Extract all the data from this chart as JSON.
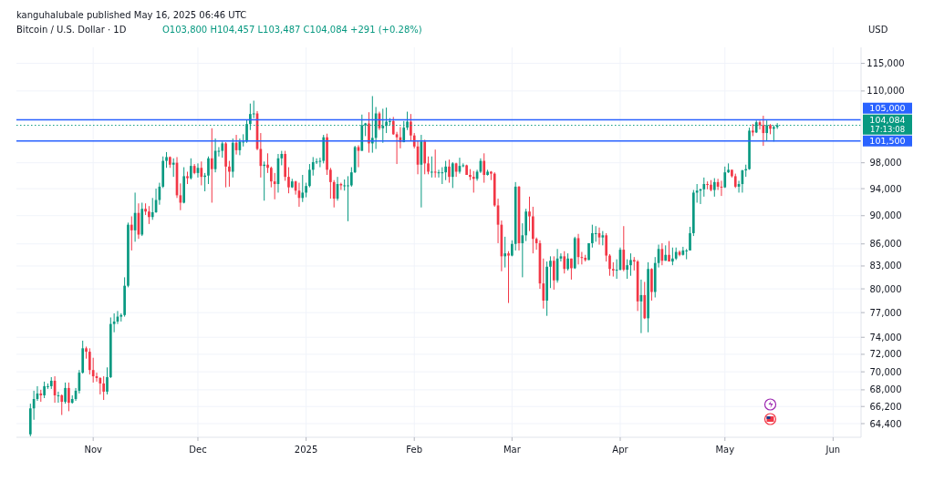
{
  "chart_data": {
    "type": "candlestick",
    "title": "Bitcoin / U.S. Dollar · 1D",
    "subtitle": "O103,800 H104,457 L103,487 C104,084 +291 (+0.28%)",
    "ylabel": "USD",
    "annotations": [
      "kanguhalubale published May 16, 2025 06:46 UTC",
      "17:13:08"
    ],
    "log": true,
    "grid": true,
    "xlim": [
      "2024-10-10",
      "2025-06-09"
    ],
    "xticks": [
      {
        "value": "2024-11-01",
        "label": "Nov"
      },
      {
        "value": "2024-12-01",
        "label": "Dec"
      },
      {
        "value": "2025-01-01",
        "label": "2025"
      },
      {
        "value": "2025-02-01",
        "label": "Feb"
      },
      {
        "value": "2025-03-01",
        "label": "Mar"
      },
      {
        "value": "2025-04-01",
        "label": "Apr"
      },
      {
        "value": "2025-05-01",
        "label": "May"
      },
      {
        "value": "2025-06-01",
        "label": "Jun"
      }
    ],
    "ylim": [
      63000,
      118000
    ],
    "yticks": [
      {
        "value": 64400,
        "label": "64,400"
      },
      {
        "value": 66200,
        "label": "66,200"
      },
      {
        "value": 68000,
        "label": "68,000"
      },
      {
        "value": 70000,
        "label": "70,000"
      },
      {
        "value": 72000,
        "label": "72,000"
      },
      {
        "value": 74000,
        "label": "74,000"
      },
      {
        "value": 77000,
        "label": "77,000"
      },
      {
        "value": 80000,
        "label": "80,000"
      },
      {
        "value": 83000,
        "label": "83,000"
      },
      {
        "value": 86000,
        "label": "86,000"
      },
      {
        "value": 90000,
        "label": "90,000"
      },
      {
        "value": 94000,
        "label": "94,000"
      },
      {
        "value": 98000,
        "label": "98,000"
      },
      {
        "value": 110000,
        "label": "110,000"
      },
      {
        "value": 115000,
        "label": "115,000"
      }
    ],
    "ref_lines": [
      {
        "axis": "y",
        "value": 105000,
        "label": "105,000",
        "color": "#2962ff",
        "line_style": "solid"
      },
      {
        "axis": "y",
        "value": 101500,
        "label": "101,500",
        "color": "#2962ff",
        "line_style": "solid"
      },
      {
        "axis": "y",
        "value": 104084,
        "label": "104,084",
        "color": "#089981",
        "line_style": "dotted"
      }
    ],
    "x": [
      "2024-10-14",
      "2024-10-15",
      "2024-10-16",
      "2024-10-17",
      "2024-10-18",
      "2024-10-19",
      "2024-10-20",
      "2024-10-21",
      "2024-10-22",
      "2024-10-23",
      "2024-10-24",
      "2024-10-25",
      "2024-10-26",
      "2024-10-27",
      "2024-10-28",
      "2024-10-29",
      "2024-10-30",
      "2024-10-31",
      "2024-11-01",
      "2024-11-02",
      "2024-11-03",
      "2024-11-04",
      "2024-11-05",
      "2024-11-06",
      "2024-11-07",
      "2024-11-08",
      "2024-11-09",
      "2024-11-10",
      "2024-11-11",
      "2024-11-12",
      "2024-11-13",
      "2024-11-14",
      "2024-11-15",
      "2024-11-16",
      "2024-11-17",
      "2024-11-18",
      "2024-11-19",
      "2024-11-20",
      "2024-11-21",
      "2024-11-22",
      "2024-11-23",
      "2024-11-24",
      "2024-11-25",
      "2024-11-26",
      "2024-11-27",
      "2024-11-28",
      "2024-11-29",
      "2024-11-30",
      "2024-12-01",
      "2024-12-02",
      "2024-12-03",
      "2024-12-04",
      "2024-12-05",
      "2024-12-06",
      "2024-12-07",
      "2024-12-08",
      "2024-12-09",
      "2024-12-10",
      "2024-12-11",
      "2024-12-12",
      "2024-12-13",
      "2024-12-14",
      "2024-12-15",
      "2024-12-16",
      "2024-12-17",
      "2024-12-18",
      "2024-12-19",
      "2024-12-20",
      "2024-12-21",
      "2024-12-22",
      "2024-12-23",
      "2024-12-24",
      "2024-12-25",
      "2024-12-26",
      "2024-12-27",
      "2024-12-28",
      "2024-12-29",
      "2024-12-30",
      "2024-12-31",
      "2025-01-01",
      "2025-01-02",
      "2025-01-03",
      "2025-01-04",
      "2025-01-05",
      "2025-01-06",
      "2025-01-07",
      "2025-01-08",
      "2025-01-09",
      "2025-01-10",
      "2025-01-11",
      "2025-01-12",
      "2025-01-13",
      "2025-01-14",
      "2025-01-15",
      "2025-01-16",
      "2025-01-17",
      "2025-01-18",
      "2025-01-19",
      "2025-01-20",
      "2025-01-21",
      "2025-01-22",
      "2025-01-23",
      "2025-01-24",
      "2025-01-25",
      "2025-01-26",
      "2025-01-27",
      "2025-01-28",
      "2025-01-29",
      "2025-01-30",
      "2025-01-31",
      "2025-02-01",
      "2025-02-02",
      "2025-02-03",
      "2025-02-04",
      "2025-02-05",
      "2025-02-06",
      "2025-02-07",
      "2025-02-08",
      "2025-02-09",
      "2025-02-10",
      "2025-02-11",
      "2025-02-12",
      "2025-02-13",
      "2025-02-14",
      "2025-02-15",
      "2025-02-16",
      "2025-02-17",
      "2025-02-18",
      "2025-02-19",
      "2025-02-20",
      "2025-02-21",
      "2025-02-22",
      "2025-02-23",
      "2025-02-24",
      "2025-02-25",
      "2025-02-26",
      "2025-02-27",
      "2025-02-28",
      "2025-03-01",
      "2025-03-02",
      "2025-03-03",
      "2025-03-04",
      "2025-03-05",
      "2025-03-06",
      "2025-03-07",
      "2025-03-08",
      "2025-03-09",
      "2025-03-10",
      "2025-03-11",
      "2025-03-12",
      "2025-03-13",
      "2025-03-14",
      "2025-03-15",
      "2025-03-16",
      "2025-03-17",
      "2025-03-18",
      "2025-03-19",
      "2025-03-20",
      "2025-03-21",
      "2025-03-22",
      "2025-03-23",
      "2025-03-24",
      "2025-03-25",
      "2025-03-26",
      "2025-03-27",
      "2025-03-28",
      "2025-03-29",
      "2025-03-30",
      "2025-03-31",
      "2025-04-01",
      "2025-04-02",
      "2025-04-03",
      "2025-04-04",
      "2025-04-05",
      "2025-04-06",
      "2025-04-07",
      "2025-04-08",
      "2025-04-09",
      "2025-04-10",
      "2025-04-11",
      "2025-04-12",
      "2025-04-13",
      "2025-04-14",
      "2025-04-15",
      "2025-04-16",
      "2025-04-17",
      "2025-04-18",
      "2025-04-19",
      "2025-04-20",
      "2025-04-21",
      "2025-04-22",
      "2025-04-23",
      "2025-04-24",
      "2025-04-25",
      "2025-04-26",
      "2025-04-27",
      "2025-04-28",
      "2025-04-29",
      "2025-04-30",
      "2025-05-01",
      "2025-05-02",
      "2025-05-03",
      "2025-05-04",
      "2025-05-05",
      "2025-05-06",
      "2025-05-07",
      "2025-05-08",
      "2025-05-09",
      "2025-05-10",
      "2025-05-11",
      "2025-05-12",
      "2025-05-13",
      "2025-05-14",
      "2025-05-15",
      "2025-05-16"
    ],
    "ohlc": [
      [
        63300,
        66500,
        63100,
        66000
      ],
      [
        66000,
        67900,
        64800,
        67000
      ],
      [
        67000,
        68400,
        66800,
        67600
      ],
      [
        67600,
        68000,
        66700,
        67400
      ],
      [
        67400,
        68900,
        67100,
        68400
      ],
      [
        68400,
        68700,
        68100,
        68400
      ],
      [
        68400,
        69400,
        68100,
        69000
      ],
      [
        69000,
        69500,
        66600,
        67400
      ],
      [
        67400,
        67800,
        66600,
        67400
      ],
      [
        67400,
        67500,
        65300,
        66700
      ],
      [
        66700,
        68800,
        66500,
        68200
      ],
      [
        68200,
        68800,
        65700,
        66600
      ],
      [
        66600,
        67400,
        66500,
        67000
      ],
      [
        67000,
        68200,
        66800,
        67900
      ],
      [
        67900,
        70200,
        67600,
        69900
      ],
      [
        69900,
        73600,
        69800,
        72700
      ],
      [
        72700,
        72900,
        71500,
        72300
      ],
      [
        72300,
        72700,
        69700,
        70200
      ],
      [
        70200,
        71600,
        68800,
        69500
      ],
      [
        69500,
        69900,
        68900,
        69300
      ],
      [
        69300,
        69400,
        67500,
        68700
      ],
      [
        68700,
        69500,
        66900,
        67800
      ],
      [
        67800,
        70500,
        67500,
        69400
      ],
      [
        69400,
        76400,
        69300,
        75600
      ],
      [
        75600,
        76900,
        74600,
        75900
      ],
      [
        75900,
        77200,
        75600,
        76500
      ],
      [
        76500,
        76900,
        75900,
        76700
      ],
      [
        76700,
        81500,
        76500,
        80400
      ],
      [
        80400,
        89000,
        80200,
        88700
      ],
      [
        88700,
        89900,
        85100,
        87900
      ],
      [
        87900,
        93400,
        86300,
        90400
      ],
      [
        90400,
        91800,
        86700,
        87300
      ],
      [
        87300,
        91900,
        87100,
        91000
      ],
      [
        91000,
        91800,
        90100,
        90600
      ],
      [
        90600,
        91400,
        88800,
        89800
      ],
      [
        89800,
        92600,
        89400,
        90500
      ],
      [
        90500,
        94000,
        90400,
        92300
      ],
      [
        92300,
        94900,
        91600,
        94300
      ],
      [
        94300,
        99000,
        94100,
        98300
      ],
      [
        98300,
        99700,
        97200,
        98900
      ],
      [
        98900,
        99000,
        97200,
        97700
      ],
      [
        97700,
        98700,
        95800,
        98000
      ],
      [
        98000,
        98900,
        92600,
        93000
      ],
      [
        93000,
        94800,
        90800,
        91900
      ],
      [
        91900,
        97300,
        91800,
        95900
      ],
      [
        95900,
        96600,
        94700,
        95600
      ],
      [
        95600,
        98700,
        95400,
        97500
      ],
      [
        97500,
        97800,
        96200,
        96400
      ],
      [
        96400,
        97900,
        95700,
        97200
      ],
      [
        97200,
        98200,
        94500,
        95800
      ],
      [
        95800,
        96400,
        93600,
        96000
      ],
      [
        96000,
        99000,
        94700,
        98700
      ],
      [
        98700,
        103600,
        91900,
        97000
      ],
      [
        97000,
        101900,
        96500,
        99900
      ],
      [
        99900,
        100500,
        99000,
        99900
      ],
      [
        99900,
        101400,
        98800,
        101100
      ],
      [
        101100,
        101300,
        94200,
        97400
      ],
      [
        97400,
        98300,
        94300,
        96600
      ],
      [
        96600,
        101900,
        95700,
        101200
      ],
      [
        101200,
        102500,
        99300,
        100000
      ],
      [
        100000,
        101900,
        99200,
        101400
      ],
      [
        101400,
        102600,
        100600,
        101400
      ],
      [
        101400,
        105000,
        101200,
        104300
      ],
      [
        104300,
        107800,
        103300,
        106000
      ],
      [
        106000,
        108300,
        105300,
        106100
      ],
      [
        106100,
        106500,
        100000,
        100200
      ],
      [
        100200,
        102800,
        95700,
        97500
      ],
      [
        97500,
        98200,
        92200,
        97700
      ],
      [
        97700,
        99500,
        96400,
        97200
      ],
      [
        97200,
        97400,
        94200,
        95100
      ],
      [
        95100,
        96400,
        92400,
        94700
      ],
      [
        94700,
        99400,
        93400,
        98700
      ],
      [
        98700,
        99900,
        97600,
        99400
      ],
      [
        99400,
        99900,
        95200,
        95800
      ],
      [
        95800,
        97300,
        93300,
        94200
      ],
      [
        94200,
        95500,
        94100,
        95100
      ],
      [
        95100,
        95200,
        93100,
        93700
      ],
      [
        93700,
        94900,
        91300,
        92600
      ],
      [
        92600,
        96100,
        92000,
        93400
      ],
      [
        93400,
        94900,
        92700,
        94400
      ],
      [
        94400,
        97800,
        94200,
        96900
      ],
      [
        96900,
        98900,
        96000,
        98100
      ],
      [
        98100,
        98700,
        97800,
        98200
      ],
      [
        98200,
        98800,
        97300,
        98300
      ],
      [
        98300,
        102500,
        97900,
        102100
      ],
      [
        102100,
        102700,
        96100,
        96900
      ],
      [
        96900,
        97200,
        92500,
        95000
      ],
      [
        95000,
        95300,
        91200,
        92500
      ],
      [
        92500,
        95800,
        92200,
        94700
      ],
      [
        94700,
        94900,
        93800,
        94500
      ],
      [
        94500,
        95400,
        93700,
        94500
      ],
      [
        94500,
        95900,
        89200,
        94500
      ],
      [
        94500,
        97300,
        94300,
        96500
      ],
      [
        96500,
        100700,
        96400,
        100500
      ],
      [
        100500,
        100800,
        97300,
        99900
      ],
      [
        99900,
        105900,
        99900,
        104100
      ],
      [
        104100,
        104500,
        102300,
        104400
      ],
      [
        104400,
        106300,
        99600,
        101100
      ],
      [
        101100,
        109100,
        99600,
        102000
      ],
      [
        102000,
        107200,
        100200,
        106100
      ],
      [
        106100,
        106400,
        103300,
        103600
      ],
      [
        103600,
        106900,
        101200,
        104000
      ],
      [
        104000,
        107100,
        102800,
        104700
      ],
      [
        104700,
        105300,
        104100,
        104800
      ],
      [
        104800,
        105500,
        102500,
        102600
      ],
      [
        102600,
        103000,
        97800,
        102100
      ],
      [
        102100,
        103800,
        100300,
        101300
      ],
      [
        101300,
        104800,
        101300,
        103700
      ],
      [
        103700,
        106400,
        103300,
        104700
      ],
      [
        104700,
        106000,
        101500,
        102400
      ],
      [
        102400,
        102800,
        100300,
        100600
      ],
      [
        100600,
        101500,
        96200,
        97700
      ],
      [
        97700,
        102500,
        91200,
        101400
      ],
      [
        101400,
        101700,
        96200,
        97900
      ],
      [
        97900,
        99000,
        96200,
        96600
      ],
      [
        96600,
        99000,
        95700,
        96600
      ],
      [
        96600,
        100100,
        95700,
        96500
      ],
      [
        96500,
        96900,
        95700,
        96500
      ],
      [
        96500,
        97300,
        94700,
        96500
      ],
      [
        96500,
        98300,
        95300,
        97400
      ],
      [
        97400,
        98500,
        94900,
        95800
      ],
      [
        95800,
        98100,
        94100,
        97900
      ],
      [
        97900,
        98000,
        95800,
        96600
      ],
      [
        96600,
        98800,
        96300,
        97500
      ],
      [
        97500,
        97900,
        97300,
        97600
      ],
      [
        97600,
        97700,
        96100,
        96100
      ],
      [
        96100,
        97000,
        95300,
        95800
      ],
      [
        95800,
        96700,
        93400,
        95500
      ],
      [
        95500,
        96900,
        95200,
        96600
      ],
      [
        96600,
        98700,
        96400,
        98300
      ],
      [
        98300,
        99500,
        94900,
        96100
      ],
      [
        96100,
        96900,
        96000,
        96600
      ],
      [
        96600,
        96700,
        95300,
        96300
      ],
      [
        96300,
        96500,
        91300,
        91500
      ],
      [
        91500,
        92500,
        86100,
        88700
      ],
      [
        88700,
        89300,
        82300,
        84300
      ],
      [
        84300,
        87000,
        82800,
        84700
      ],
      [
        84700,
        85000,
        78200,
        84400
      ],
      [
        84400,
        86500,
        84300,
        86000
      ],
      [
        86000,
        95000,
        85100,
        94300
      ],
      [
        94300,
        94400,
        85100,
        86100
      ],
      [
        86100,
        88900,
        81500,
        87200
      ],
      [
        87200,
        91000,
        86400,
        90600
      ],
      [
        90600,
        92800,
        87800,
        89900
      ],
      [
        89900,
        91300,
        84700,
        86700
      ],
      [
        86700,
        86900,
        85200,
        86100
      ],
      [
        86100,
        86500,
        80000,
        80700
      ],
      [
        80700,
        84000,
        77500,
        78500
      ],
      [
        78500,
        83600,
        76600,
        82900
      ],
      [
        82900,
        84300,
        80100,
        83700
      ],
      [
        83700,
        84300,
        79900,
        81100
      ],
      [
        81100,
        85300,
        80800,
        84000
      ],
      [
        84000,
        84700,
        83600,
        84300
      ],
      [
        84300,
        85000,
        82000,
        82600
      ],
      [
        82600,
        84700,
        82400,
        84000
      ],
      [
        84000,
        84000,
        81200,
        82700
      ],
      [
        82700,
        87000,
        82600,
        86800
      ],
      [
        86800,
        87400,
        83200,
        84200
      ],
      [
        84200,
        84900,
        83200,
        84100
      ],
      [
        84100,
        84500,
        83600,
        83800
      ],
      [
        83800,
        86100,
        83800,
        86100
      ],
      [
        86100,
        88700,
        85500,
        87500
      ],
      [
        87500,
        88500,
        86300,
        87500
      ],
      [
        87500,
        88300,
        85900,
        86900
      ],
      [
        86900,
        87800,
        85800,
        87200
      ],
      [
        87200,
        87500,
        83600,
        84400
      ],
      [
        84400,
        84600,
        81700,
        82600
      ],
      [
        82600,
        83500,
        81600,
        82400
      ],
      [
        82400,
        83900,
        81300,
        82500
      ],
      [
        82500,
        85500,
        82400,
        85200
      ],
      [
        85200,
        88500,
        82300,
        82500
      ],
      [
        82500,
        83900,
        81300,
        83100
      ],
      [
        83100,
        84700,
        81700,
        83800
      ],
      [
        83800,
        84200,
        82400,
        83600
      ],
      [
        83600,
        83800,
        77200,
        78400
      ],
      [
        78400,
        81200,
        74500,
        79200
      ],
      [
        79200,
        80900,
        76200,
        76300
      ],
      [
        76300,
        83500,
        74600,
        82600
      ],
      [
        82600,
        82700,
        78500,
        79600
      ],
      [
        79600,
        84200,
        78900,
        83400
      ],
      [
        83400,
        85900,
        82800,
        85300
      ],
      [
        85300,
        86100,
        83100,
        83700
      ],
      [
        83700,
        85800,
        83700,
        84500
      ],
      [
        84500,
        86400,
        83600,
        83600
      ],
      [
        83600,
        85500,
        83100,
        84000
      ],
      [
        84000,
        85500,
        83800,
        84900
      ],
      [
        84900,
        85100,
        84300,
        84500
      ],
      [
        84500,
        85600,
        84400,
        85100
      ],
      [
        85100,
        85300,
        83900,
        85100
      ],
      [
        85100,
        88400,
        85100,
        87500
      ],
      [
        87500,
        93800,
        87100,
        93400
      ],
      [
        93400,
        94700,
        91900,
        93700
      ],
      [
        93700,
        94000,
        91700,
        93900
      ],
      [
        93900,
        95700,
        92800,
        94700
      ],
      [
        94700,
        95100,
        93900,
        94600
      ],
      [
        94600,
        95300,
        93600,
        93800
      ],
      [
        93800,
        95600,
        92800,
        95000
      ],
      [
        95000,
        95500,
        93800,
        94300
      ],
      [
        94300,
        95200,
        92900,
        94200
      ],
      [
        94200,
        97400,
        94100,
        96500
      ],
      [
        96500,
        97900,
        96400,
        96900
      ],
      [
        96900,
        96900,
        95700,
        95900
      ],
      [
        95900,
        96300,
        94100,
        94300
      ],
      [
        94300,
        95200,
        93400,
        94700
      ],
      [
        94700,
        96900,
        93400,
        96800
      ],
      [
        96800,
        97700,
        95800,
        97000
      ],
      [
        97000,
        103700,
        96900,
        103200
      ],
      [
        103200,
        104300,
        102300,
        102900
      ],
      [
        102900,
        104900,
        102800,
        104600
      ],
      [
        104600,
        104900,
        103400,
        104100
      ],
      [
        104100,
        105700,
        100700,
        102800
      ],
      [
        102800,
        104900,
        101500,
        104100
      ],
      [
        104100,
        104300,
        102600,
        103500
      ],
      [
        103500,
        104100,
        101400,
        103800
      ],
      [
        103800,
        104457,
        103487,
        104084
      ]
    ]
  }
}
